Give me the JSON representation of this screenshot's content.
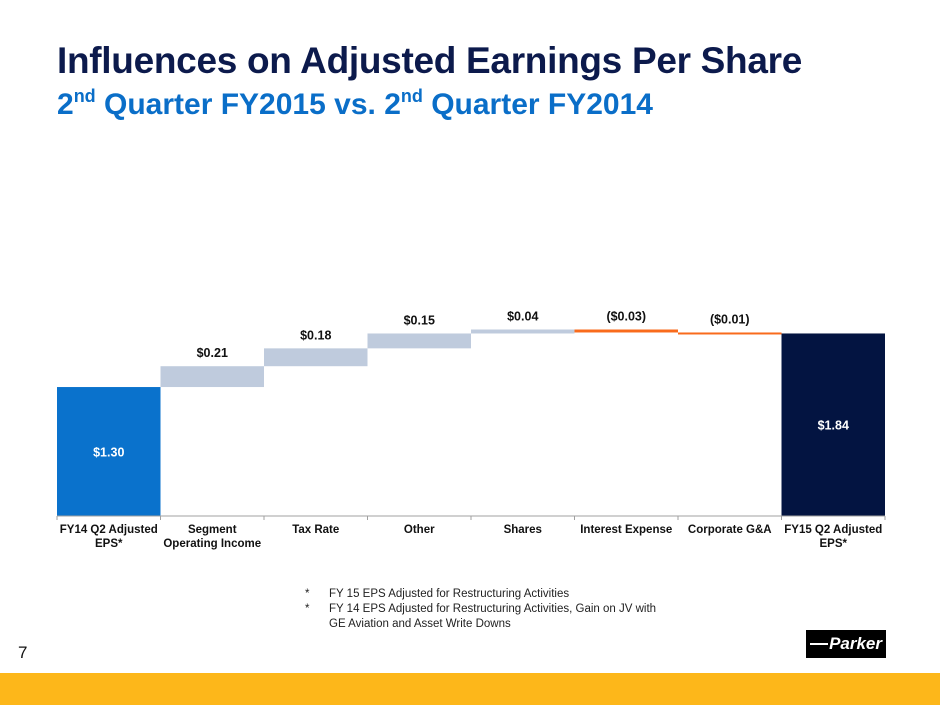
{
  "title": "Influences on Adjusted Earnings Per Share",
  "subtitle": {
    "part1_num": "2",
    "part1_sup": "nd",
    "part1_rest": " Quarter FY2015 vs. ",
    "part2_num": "2",
    "part2_sup": "nd",
    "part2_rest": " Quarter FY2014"
  },
  "chart_data": {
    "type": "bar",
    "subtype": "waterfall",
    "title": "Influences on Adjusted Earnings Per Share",
    "categories": [
      "FY14 Q2 Adjusted EPS*",
      "Segment Operating Income",
      "Tax Rate",
      "Other",
      "Shares",
      "Interest Expense",
      "Corporate G&A",
      "FY15 Q2 Adjusted EPS*"
    ],
    "category_lines": [
      [
        "FY14 Q2 Adjusted",
        "EPS*"
      ],
      [
        "Segment",
        "Operating Income"
      ],
      [
        "Tax Rate"
      ],
      [
        "Other"
      ],
      [
        "Shares"
      ],
      [
        "Interest Expense"
      ],
      [
        "Corporate G&A"
      ],
      [
        "FY15 Q2 Adjusted",
        "EPS*"
      ]
    ],
    "values": [
      1.3,
      0.21,
      0.18,
      0.15,
      0.04,
      -0.03,
      -0.01,
      1.84
    ],
    "kinds": [
      "total",
      "delta",
      "delta",
      "delta",
      "delta",
      "delta",
      "delta",
      "total"
    ],
    "labels": [
      "$1.30",
      "$0.21",
      "$0.18",
      "$0.15",
      "$0.04",
      "($0.03)",
      "($0.01)",
      "$1.84"
    ],
    "colors": {
      "start_total": "#0a72cc",
      "end_total": "#031441",
      "increase": "#bfcbdd",
      "decrease": "#f96b1c",
      "axis": "#a0a0a0"
    },
    "xlabel": "",
    "ylabel": "",
    "ylim": [
      0,
      2.35
    ],
    "grid": false,
    "legend": "none"
  },
  "footnotes": [
    {
      "marker": "*",
      "lines": [
        "FY 15 EPS Adjusted for Restructuring Activities"
      ]
    },
    {
      "marker": "*",
      "lines": [
        "FY 14 EPS Adjusted for Restructuring Activities, Gain on JV with",
        "GE Aviation and Asset Write Downs"
      ]
    }
  ],
  "page_number": "7",
  "logo_text": "Parker",
  "colors": {
    "title": "#0c1a4c",
    "subtitle": "#0a6ec8",
    "band": "#fdb71a"
  }
}
